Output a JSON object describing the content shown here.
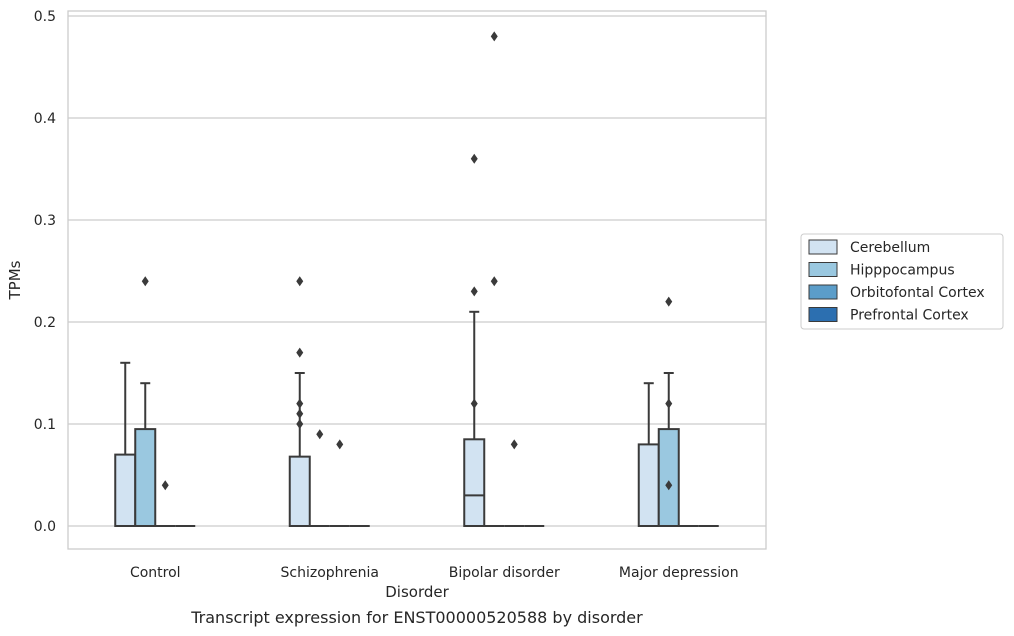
{
  "chart_data": {
    "type": "box",
    "xlabel": "Disorder",
    "ylabel": "TPMs",
    "caption": "Transcript expression for ENST00000520588 by disorder",
    "ylim": [
      -0.023,
      0.505
    ],
    "yticks": [
      "0.0",
      "0.1",
      "0.2",
      "0.3",
      "0.4",
      "0.5"
    ],
    "ytick_values": [
      0.0,
      0.1,
      0.2,
      0.3,
      0.4,
      0.5
    ],
    "grid": "horizontal",
    "legend_position": "right",
    "categories": [
      "Control",
      "Schizophrenia",
      "Bipolar disorder",
      "Major depression"
    ],
    "series": [
      {
        "name": "Cerebellum",
        "color": "#d2e3f2",
        "boxes": [
          {
            "q1": 0.0,
            "median": 0.0,
            "q3": 0.07,
            "whisker_low": 0.0,
            "whisker_high": 0.16,
            "outliers": []
          },
          {
            "q1": 0.0,
            "median": 0.0,
            "q3": 0.068,
            "whisker_low": 0.0,
            "whisker_high": 0.15,
            "outliers": [
              0.24,
              0.17,
              0.12,
              0.11,
              0.1
            ]
          },
          {
            "q1": 0.0,
            "median": 0.03,
            "q3": 0.085,
            "whisker_low": 0.0,
            "whisker_high": 0.21,
            "outliers": [
              0.36,
              0.23,
              0.12
            ]
          },
          {
            "q1": 0.0,
            "median": 0.0,
            "q3": 0.08,
            "whisker_low": 0.0,
            "whisker_high": 0.14,
            "outliers": []
          }
        ]
      },
      {
        "name": "Hipppocampus",
        "color": "#9ac8e0",
        "boxes": [
          {
            "q1": 0.0,
            "median": 0.0,
            "q3": 0.095,
            "whisker_low": 0.0,
            "whisker_high": 0.14,
            "outliers": [
              0.24
            ]
          },
          {
            "q1": 0.0,
            "median": 0.0,
            "q3": 0.0,
            "whisker_low": 0.0,
            "whisker_high": 0.0,
            "outliers": [
              0.09
            ]
          },
          {
            "q1": 0.0,
            "median": 0.0,
            "q3": 0.0,
            "whisker_low": 0.0,
            "whisker_high": 0.0,
            "outliers": [
              0.48,
              0.24
            ]
          },
          {
            "q1": 0.0,
            "median": 0.0,
            "q3": 0.095,
            "whisker_low": 0.0,
            "whisker_high": 0.15,
            "outliers": [
              0.22,
              0.12,
              0.04
            ]
          }
        ]
      },
      {
        "name": "Orbitofontal Cortex",
        "color": "#5b9dc9",
        "boxes": [
          {
            "q1": 0.0,
            "median": 0.0,
            "q3": 0.0,
            "whisker_low": 0.0,
            "whisker_high": 0.0,
            "outliers": [
              0.04
            ]
          },
          {
            "q1": 0.0,
            "median": 0.0,
            "q3": 0.0,
            "whisker_low": 0.0,
            "whisker_high": 0.0,
            "outliers": [
              0.08
            ]
          },
          {
            "q1": 0.0,
            "median": 0.0,
            "q3": 0.0,
            "whisker_low": 0.0,
            "whisker_high": 0.0,
            "outliers": [
              0.08
            ]
          },
          {
            "q1": 0.0,
            "median": 0.0,
            "q3": 0.0,
            "whisker_low": 0.0,
            "whisker_high": 0.0,
            "outliers": []
          }
        ]
      },
      {
        "name": "Prefrontal Cortex",
        "color": "#2c6fb0",
        "boxes": [
          {
            "q1": 0.0,
            "median": 0.0,
            "q3": 0.0,
            "whisker_low": 0.0,
            "whisker_high": 0.0,
            "outliers": []
          },
          {
            "q1": 0.0,
            "median": 0.0,
            "q3": 0.0,
            "whisker_low": 0.0,
            "whisker_high": 0.0,
            "outliers": []
          },
          {
            "q1": 0.0,
            "median": 0.0,
            "q3": 0.0,
            "whisker_low": 0.0,
            "whisker_high": 0.0,
            "outliers": []
          },
          {
            "q1": 0.0,
            "median": 0.0,
            "q3": 0.0,
            "whisker_low": 0.0,
            "whisker_high": 0.0,
            "outliers": []
          }
        ]
      }
    ]
  }
}
